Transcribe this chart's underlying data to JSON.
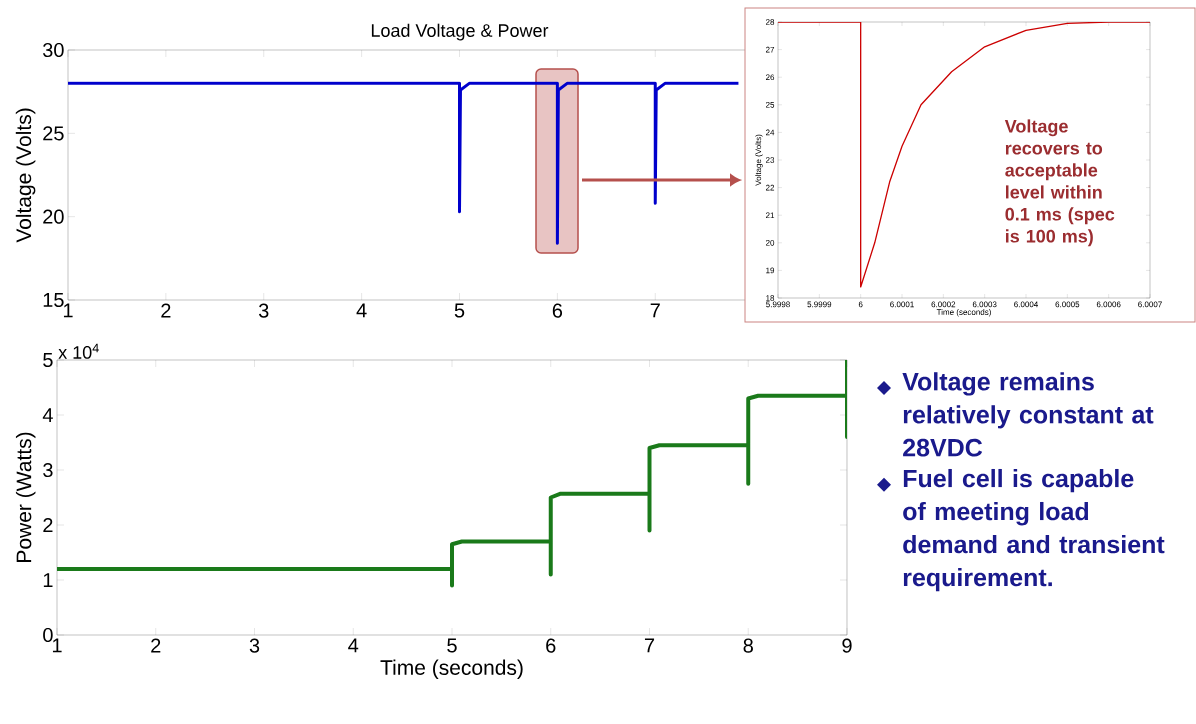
{
  "chart_data": [
    {
      "type": "line",
      "title": "Load Voltage & Power",
      "ylabel": "Voltage (Volts)",
      "color": "#0000cc",
      "x": [
        1,
        5,
        5,
        5.01,
        5.1,
        6,
        6,
        6.01,
        6.1,
        7,
        7,
        7.01,
        7.1,
        7.85
      ],
      "values": [
        28,
        28,
        20.3,
        27.6,
        28,
        28,
        18.4,
        27.6,
        28,
        28,
        20.8,
        27.6,
        28,
        28
      ],
      "xlim": [
        1,
        9
      ],
      "ylim": [
        15,
        30
      ],
      "xticks": [
        1,
        2,
        3,
        4,
        5,
        6,
        7
      ],
      "yticks": [
        15,
        20,
        25,
        30
      ]
    },
    {
      "type": "line",
      "xlabel": "Time (seconds)",
      "ylabel": "Voltage (Volts)",
      "color": "#cc0000",
      "x": [
        5.9998,
        6,
        6,
        6.000034,
        6.00007,
        6.0001,
        6.000146,
        6.00022,
        6.0003,
        6.0004,
        6.0005,
        6.0006,
        6.0007
      ],
      "values": [
        28,
        28,
        18.4,
        20,
        22.2,
        23.5,
        25,
        26.2,
        27.1,
        27.7,
        27.95,
        28,
        28
      ],
      "xlim": [
        5.9998,
        6.0007
      ],
      "ylim": [
        18,
        28
      ],
      "xticks": [
        5.9998,
        5.9999,
        6,
        6.0001,
        6.0002,
        6.0003,
        6.0004,
        6.0005,
        6.0006,
        6.0007
      ],
      "yticks": [
        18,
        19,
        20,
        21,
        22,
        23,
        24,
        25,
        26,
        27,
        28
      ],
      "annotations": [
        "Voltage recovers to acceptable level within 0.1 ms (spec is 100 ms)"
      ]
    },
    {
      "type": "line",
      "xlabel": "Time (seconds)",
      "ylabel": "Power (Watts)",
      "color": "#1a7a1a",
      "x": [
        1,
        5,
        5,
        5,
        5.1,
        6,
        6,
        6,
        6.1,
        7,
        7,
        7,
        7.1,
        8,
        8,
        8,
        8.1,
        9,
        9,
        9
      ],
      "values": [
        1.2,
        1.2,
        0.9,
        1.65,
        1.7,
        1.7,
        1.1,
        2.5,
        2.57,
        2.57,
        1.9,
        3.4,
        3.45,
        3.45,
        2.75,
        4.3,
        4.35,
        4.35,
        3.6,
        5
      ],
      "xlim": [
        1,
        9
      ],
      "ylim": [
        0,
        5
      ],
      "xticks": [
        1,
        2,
        3,
        4,
        5,
        6,
        7,
        8,
        9
      ],
      "yticks": [
        0,
        1,
        2,
        3,
        4,
        5
      ],
      "annotations": [
        "x 10$^{4}$"
      ]
    },
    {
      "type": "other",
      "annotations": [
        "Voltage remains relatively constant at 28VDC",
        "Fuel cell is capable of meeting load demand and transient requirement."
      ]
    }
  ]
}
